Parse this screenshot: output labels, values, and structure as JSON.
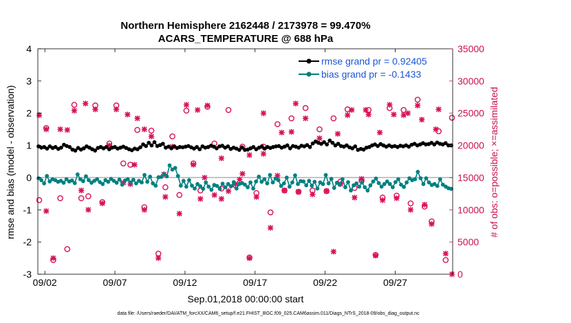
{
  "chart_data": {
    "type": "line",
    "title": "Northern Hemisphere 2162448 / 2173978 = 99.470%",
    "subtitle": "ACARS_TEMPERATURE @ 688 hPa",
    "xlabel": "Sep.01,2018 00:00:00 start",
    "ylabel": "rmse and bias (model - observation)",
    "y2label": "# of obs: o=possible; ×=assimilated",
    "footnote": "data file: /Users/raeder/DAI/ATM_forcXX/CAM6_setup/f.e21.FHIST_BGC.f09_025.CAM6assim.011/Diags_NTrS_2018-09/obs_diag_output.nc",
    "xlim": [
      1.5,
      31.1
    ],
    "ylim": [
      -3,
      4
    ],
    "y2lim": [
      0,
      35000
    ],
    "x_ticks": [
      2,
      7,
      12,
      17,
      22,
      27
    ],
    "x_tick_labels": [
      "09/02",
      "09/07",
      "09/12",
      "09/17",
      "09/22",
      "09/27"
    ],
    "y_ticks": [
      -3,
      -2,
      -1,
      0,
      1,
      2,
      3,
      4
    ],
    "y_tick_labels": [
      "-3",
      "-2",
      "-1",
      "0",
      "1",
      "2",
      "3",
      "4"
    ],
    "y2_ticks": [
      0,
      5000,
      10000,
      15000,
      20000,
      25000,
      30000,
      35000
    ],
    "y2_tick_labels": [
      "0",
      "5000",
      "10000",
      "15000",
      "20000",
      "25000",
      "30000",
      "35000"
    ],
    "legend_position": "top-right",
    "colors": {
      "rmse": "#000000",
      "bias": "#008080",
      "obs": "#d8105a",
      "zero_line": "#b0b0b0",
      "legend_text": "#1a56d6",
      "right_axis": "#c8104e"
    },
    "series": [
      {
        "name": "rmse",
        "legend_label": "rmse grand pr = 0.92405",
        "values": [
          0.97,
          0.93,
          0.95,
          0.9,
          0.97,
          0.92,
          0.95,
          0.89,
          0.93,
          1.02,
          0.98,
          0.95,
          0.87,
          0.84,
          0.92,
          0.87,
          0.91,
          0.97,
          0.93,
          0.88,
          0.84,
          0.92,
          0.95,
          0.91,
          0.95,
          0.88,
          0.93,
          0.95,
          0.9,
          0.93,
          0.96,
          0.92,
          0.88,
          0.85,
          0.9,
          0.88,
          0.94,
          1.03,
          0.98,
          1.08,
          1.0,
          1.1,
          0.98,
          1.01,
          1.05,
          0.93,
          0.96,
          0.91,
          0.97,
          0.92,
          0.95,
          0.94,
          0.96,
          0.98,
          0.94,
          0.9,
          0.95,
          0.88,
          0.97,
          0.93,
          0.95,
          0.99,
          0.96,
          0.91,
          0.97,
          0.99,
          0.93,
          0.97,
          0.89,
          0.93,
          0.9,
          0.86,
          0.94,
          0.86,
          0.87,
          0.91,
          0.95,
          0.88,
          0.93,
          0.97,
          0.9,
          0.95,
          0.92,
          0.95,
          0.97,
          0.98,
          0.93,
          0.96,
          1.0,
          0.91,
          0.98,
          0.96,
          0.93,
          0.99,
          0.97,
          1.01,
          0.95,
          1.06,
          1.12,
          1.08,
          1.05,
          1.1,
          1.03,
          1.15,
          1.08,
          1.0,
          1.05,
          0.98,
          0.96,
          1.0,
          0.94,
          0.91,
          0.97,
          0.86,
          0.89,
          0.87,
          0.93,
          0.95,
          1.0,
          1.03,
          0.98,
          1.04,
          1.0,
          0.96,
          1.0,
          0.96,
          0.98,
          0.95,
          0.99,
          0.97,
          1.0,
          0.96,
          1.02,
          1.05,
          1.0,
          1.03,
          1.07,
          1.03,
          1.04,
          1.08,
          1.03,
          1.09,
          1.05,
          1.03,
          1.07,
          1.0,
          1.0
        ]
      },
      {
        "name": "bias",
        "legend_label": "bias grand pr = -0.1433",
        "values": [
          -0.02,
          -0.08,
          -0.18,
          0.05,
          -0.12,
          -0.05,
          -0.08,
          -0.13,
          -0.1,
          -0.16,
          -0.05,
          -0.12,
          -0.09,
          -0.17,
          0.1,
          -0.05,
          -0.11,
          0.04,
          -0.08,
          -0.16,
          -0.1,
          -0.05,
          -0.14,
          -0.2,
          -0.08,
          -0.13,
          -0.04,
          -0.1,
          -0.16,
          -0.06,
          -0.22,
          -0.09,
          -0.05,
          -0.15,
          -0.07,
          -0.18,
          -0.1,
          -0.15,
          0.08,
          -0.13,
          0.03,
          -0.18,
          -0.25,
          0.01,
          0.02,
          0.11,
          0.04,
          0.38,
          0.25,
          0.3,
          0.05,
          -0.25,
          -0.1,
          -0.28,
          -0.08,
          -0.25,
          -0.34,
          -0.2,
          -0.27,
          -0.35,
          -0.15,
          -0.28,
          -0.38,
          -0.23,
          -0.26,
          -0.35,
          -0.19,
          -0.3,
          -0.2,
          -0.27,
          -0.14,
          -0.34,
          -0.2,
          -0.17,
          -0.22,
          -0.3,
          -0.15,
          -0.34,
          -0.12,
          0.03,
          -0.13,
          -0.05,
          -0.18,
          0.08,
          -0.15,
          -0.03,
          -0.08,
          -0.26,
          -0.18,
          0.0,
          -0.28,
          -0.15,
          0.07,
          -0.2,
          -0.11,
          -0.12,
          -0.24,
          -0.1,
          -0.25,
          -0.13,
          -0.34,
          -0.15,
          -0.2,
          0.08,
          -0.18,
          -0.04,
          -0.32,
          -0.16,
          -0.22,
          -0.05,
          -0.3,
          -0.14,
          -0.4,
          -0.24,
          -0.18,
          -0.28,
          -0.15,
          -0.3,
          -0.4,
          -0.24,
          -0.12,
          -0.03,
          -0.17,
          -0.28,
          -0.2,
          -0.12,
          -0.2,
          -0.3,
          -0.14,
          -0.05,
          -0.22,
          -0.29,
          -0.15,
          -0.02,
          -0.08,
          -0.05,
          0.18,
          -0.02,
          -0.2,
          -0.02,
          -0.15,
          -0.23,
          -0.2,
          -0.26,
          -0.05,
          -0.22,
          -0.28,
          -0.33,
          -0.35
        ]
      },
      {
        "name": "obs_possible",
        "axis": "right",
        "marker": "o",
        "x": [
          1.6,
          2.1,
          2.6,
          3.1,
          3.6,
          4.1,
          4.6,
          5.1,
          5.6,
          6.1,
          6.6,
          7.1,
          7.6,
          8.1,
          8.6,
          9.1,
          9.6,
          10.1,
          10.6,
          11.1,
          11.6,
          12.1,
          12.6,
          13.1,
          13.6,
          14.1,
          14.6,
          15.1,
          15.6,
          16.1,
          16.6,
          17.1,
          17.6,
          18.1,
          18.6,
          19.1,
          19.6,
          20.1,
          20.6,
          21.1,
          21.6,
          22.1,
          22.6,
          23.1,
          23.6,
          24.1,
          24.6,
          25.1,
          25.6,
          26.1,
          26.6,
          27.1,
          27.6,
          28.1,
          28.6,
          29.1,
          29.6,
          30.1,
          30.6,
          31.05
        ],
        "values": [
          11500,
          22700,
          2200,
          11800,
          3900,
          26300,
          11800,
          12100,
          26200,
          11200,
          20300,
          26200,
          17200,
          17000,
          22400,
          10400,
          22300,
          3200,
          13500,
          21400,
          12300,
          25400,
          17200,
          13000,
          26000,
          20300,
          13300,
          25500,
          13800,
          19800,
          2600,
          12600,
          19800,
          9600,
          23300,
          13000,
          24200,
          12800,
          25800,
          13000,
          22500,
          12900,
          24200,
          14400,
          25600,
          13400,
          14500,
          25500,
          3000,
          11900,
          25800,
          12200,
          25500,
          11000,
          27100,
          10500,
          8200,
          22200,
          2200,
          24300
        ]
      },
      {
        "name": "obs_assimilated",
        "axis": "right",
        "marker": "x",
        "x": [
          1.6,
          2.1,
          2.6,
          3.1,
          3.6,
          4.1,
          4.6,
          5.1,
          5.6,
          6.1,
          6.6,
          7.1,
          7.6,
          8.1,
          8.6,
          9.1,
          9.6,
          10.1,
          10.6,
          11.1,
          11.6,
          12.1,
          12.6,
          13.1,
          13.6,
          14.1,
          14.6,
          15.1,
          15.6,
          16.1,
          16.6,
          17.1,
          17.6,
          18.1,
          18.6,
          19.1,
          19.6,
          20.1,
          20.6,
          21.1,
          21.6,
          22.1,
          22.6,
          23.1,
          23.6,
          24.1,
          24.6,
          25.1,
          25.6,
          26.1,
          26.6,
          27.1,
          27.6,
          28.1,
          28.6,
          29.1,
          29.6,
          30.1,
          30.6,
          31.05
        ],
        "values": [
          24700,
          9800,
          2500,
          22500,
          22400,
          25400,
          13000,
          10000,
          25600,
          11000,
          20000,
          25600,
          14200,
          14000,
          24200,
          10000,
          21400,
          2500,
          12000,
          19800,
          9400,
          26300,
          17000,
          11700,
          26200,
          12300,
          11700,
          12900,
          14000,
          15600,
          2500,
          12000,
          18700,
          7200,
          15300,
          13000,
          22100,
          12800,
          24200,
          12400,
          21100,
          12900,
          3500,
          14000,
          24700,
          11900,
          14800,
          24800,
          2900,
          11500,
          26300,
          11800,
          24700,
          10000,
          26200,
          10800,
          7800,
          25600,
          3200,
          0
        ]
      },
      {
        "name": "obs_assimilated_extra",
        "axis": "right",
        "marker": "x",
        "x": [
          2.1,
          4.9,
          7.9,
          8.4,
          9.1,
          10.5,
          12.9,
          13.4,
          14.6,
          15.9,
          16.6,
          17.6,
          18.9,
          19.9,
          22.9,
          23.9,
          24.9,
          25.9,
          26.9,
          27.9,
          28.9,
          29.9
        ],
        "values": [
          22500,
          26500,
          24800,
          17000,
          22500,
          15500,
          25500,
          15000,
          18000,
          14700,
          18500,
          25000,
          22000,
          26500,
          21800,
          25500,
          25500,
          22000,
          24800,
          25000,
          24000,
          22500
        ]
      }
    ]
  }
}
